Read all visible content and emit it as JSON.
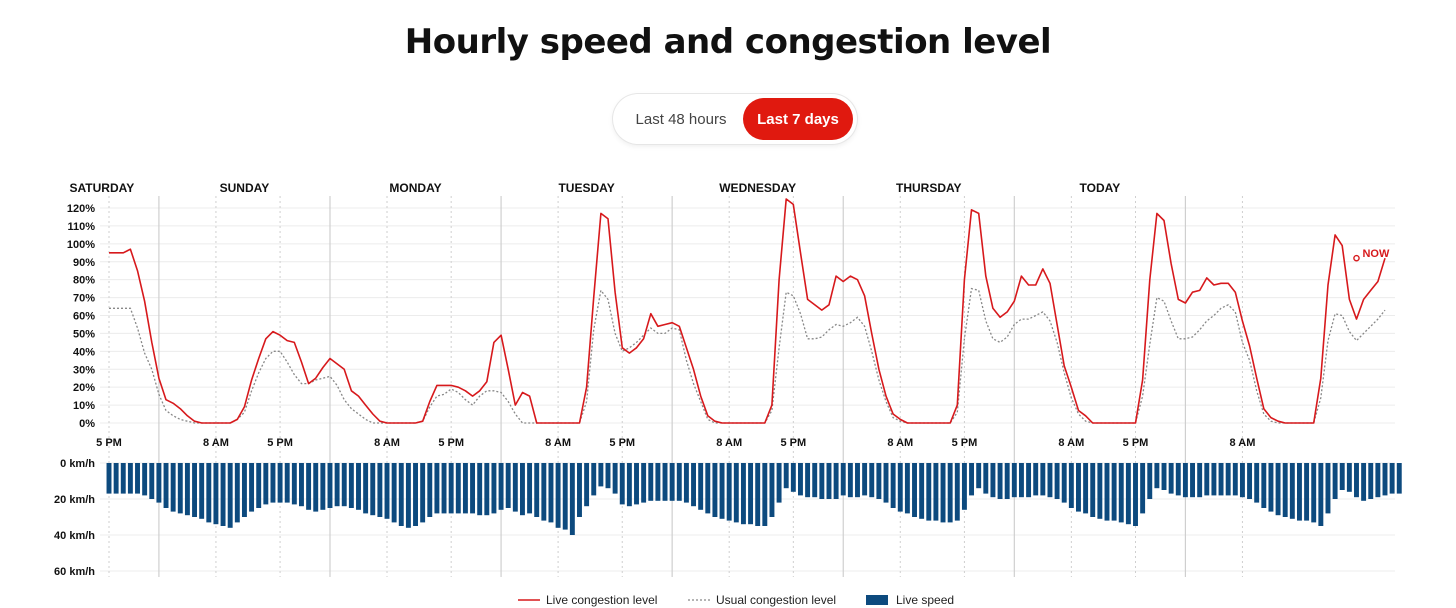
{
  "page": {
    "title": "Hourly speed and congestion level",
    "toggle": {
      "option_48h": "Last 48 hours",
      "option_7d": "Last 7 days",
      "active": "Last 7 days"
    }
  },
  "colors": {
    "live": "#d7191c",
    "usual": "#888888",
    "speed": "#0d4a7e",
    "active_button": "#e0190f",
    "now": "#d7191c"
  },
  "chart_data": [
    {
      "type": "line",
      "title": "",
      "x_unit": "hour",
      "x_start_label": "Saturday 5 PM",
      "days": [
        "SATURDAY",
        "SUNDAY",
        "MONDAY",
        "TUESDAY",
        "WEDNESDAY",
        "THURSDAY",
        "TODAY"
      ],
      "day_boundaries": [
        7,
        31,
        55,
        79,
        103,
        127,
        151
      ],
      "time_ticks": [
        {
          "x": 0,
          "label": "5 PM"
        },
        {
          "x": 15,
          "label": "8 AM"
        },
        {
          "x": 24,
          "label": "5 PM"
        },
        {
          "x": 39,
          "label": "8 AM"
        },
        {
          "x": 48,
          "label": "5 PM"
        },
        {
          "x": 63,
          "label": "8 AM"
        },
        {
          "x": 72,
          "label": "5 PM"
        },
        {
          "x": 87,
          "label": "8 AM"
        },
        {
          "x": 96,
          "label": "5 PM"
        },
        {
          "x": 111,
          "label": "8 AM"
        },
        {
          "x": 120,
          "label": "5 PM"
        },
        {
          "x": 135,
          "label": "8 AM"
        },
        {
          "x": 144,
          "label": "5 PM"
        },
        {
          "x": 159,
          "label": "8 AM"
        }
      ],
      "y_ticks": [
        "0%",
        "10%",
        "20%",
        "30%",
        "40%",
        "50%",
        "60%",
        "70%",
        "80%",
        "90%",
        "100%",
        "110%",
        "120%"
      ],
      "ylim": [
        0,
        120
      ],
      "series": [
        {
          "name": "Live congestion level",
          "values": [
            95,
            95,
            95,
            97,
            85,
            68,
            45,
            25,
            13,
            11,
            8,
            4,
            1,
            0,
            0,
            0,
            0,
            0,
            2,
            9,
            24,
            36,
            47,
            51,
            49,
            46,
            45,
            34,
            22,
            25,
            31,
            36,
            33,
            30,
            18,
            15,
            10,
            5,
            1,
            0,
            0,
            0,
            0,
            0,
            1,
            12,
            21,
            21,
            21,
            20,
            18,
            15,
            18,
            23,
            45,
            49,
            30,
            10,
            17,
            15,
            0,
            0,
            0,
            0,
            0,
            0,
            0,
            20,
            70,
            117,
            114,
            73,
            42,
            39,
            42,
            47,
            61,
            54,
            55,
            56,
            54,
            42,
            30,
            15,
            4,
            1,
            0,
            0,
            0,
            0,
            0,
            0,
            0,
            10,
            80,
            125,
            122,
            95,
            69,
            66,
            63,
            66,
            82,
            79,
            82,
            80,
            71,
            50,
            30,
            15,
            5,
            2,
            0,
            0,
            0,
            0,
            0,
            0,
            0,
            10,
            80,
            119,
            117,
            82,
            64,
            59,
            62,
            68,
            82,
            77,
            77,
            86,
            78,
            55,
            32,
            20,
            7,
            4,
            0,
            0,
            0,
            0,
            0,
            0,
            0,
            24,
            80,
            117,
            113,
            89,
            69,
            67,
            73,
            74,
            81,
            77,
            78,
            78,
            73,
            57,
            43,
            25,
            8,
            3,
            1,
            0,
            0,
            0,
            0,
            0,
            25,
            77,
            105,
            99,
            69,
            58,
            69,
            74,
            79,
            92
          ]
        },
        {
          "name": "Usual congestion level",
          "values": [
            64,
            64,
            64,
            64,
            53,
            39,
            30,
            16,
            7,
            4,
            2,
            1,
            0,
            0,
            0,
            0,
            0,
            0,
            2,
            6,
            18,
            28,
            36,
            40,
            40,
            34,
            27,
            22,
            22,
            24,
            25,
            26,
            21,
            13,
            8,
            5,
            2,
            0,
            0,
            0,
            0,
            0,
            0,
            0,
            1,
            9,
            15,
            16,
            19,
            17,
            13,
            10,
            15,
            18,
            18,
            17,
            12,
            5,
            0,
            0,
            0,
            0,
            0,
            0,
            0,
            0,
            0,
            12,
            52,
            74,
            69,
            50,
            40,
            42,
            45,
            49,
            53,
            50,
            50,
            53,
            52,
            35,
            22,
            12,
            2,
            0,
            0,
            0,
            0,
            0,
            0,
            0,
            0,
            7,
            42,
            73,
            71,
            61,
            47,
            47,
            48,
            52,
            55,
            54,
            56,
            59,
            54,
            40,
            24,
            12,
            3,
            1,
            0,
            0,
            0,
            0,
            0,
            0,
            0,
            6,
            47,
            75,
            74,
            57,
            47,
            45,
            48,
            55,
            58,
            58,
            60,
            62,
            57,
            45,
            28,
            14,
            5,
            1,
            0,
            0,
            0,
            0,
            0,
            0,
            0,
            15,
            44,
            70,
            68,
            57,
            47,
            47,
            48,
            52,
            57,
            60,
            64,
            66,
            62,
            45,
            35,
            18,
            5,
            1,
            0,
            0,
            0,
            0,
            0,
            0,
            14,
            46,
            61,
            60,
            51,
            46,
            50,
            54,
            58,
            63
          ]
        }
      ],
      "annotations": [
        {
          "label": "NOW",
          "x": 175,
          "y": 92
        }
      ]
    },
    {
      "type": "bar",
      "title": "",
      "x_unit": "hour",
      "y_ticks": [
        "0 km/h",
        "20 km/h",
        "40 km/h",
        "60 km/h"
      ],
      "ylim": [
        0,
        60
      ],
      "inverted": true,
      "series": [
        {
          "name": "Live speed",
          "values": [
            17,
            17,
            17,
            17,
            17,
            18,
            20,
            22,
            25,
            27,
            28,
            29,
            30,
            31,
            33,
            34,
            35,
            36,
            33,
            30,
            27,
            25,
            23,
            22,
            22,
            22,
            23,
            24,
            26,
            27,
            26,
            25,
            24,
            24,
            25,
            26,
            28,
            29,
            30,
            31,
            33,
            35,
            36,
            35,
            33,
            30,
            28,
            28,
            28,
            28,
            28,
            28,
            29,
            29,
            28,
            26,
            25,
            27,
            29,
            28,
            30,
            32,
            33,
            36,
            37,
            40,
            30,
            24,
            18,
            13,
            14,
            17,
            23,
            24,
            23,
            22,
            21,
            21,
            21,
            21,
            21,
            22,
            24,
            26,
            28,
            30,
            31,
            32,
            33,
            34,
            34,
            35,
            35,
            30,
            22,
            14,
            16,
            18,
            19,
            19,
            20,
            20,
            20,
            18,
            19,
            19,
            18,
            19,
            20,
            22,
            25,
            27,
            28,
            30,
            31,
            32,
            32,
            33,
            33,
            32,
            26,
            18,
            14,
            17,
            19,
            20,
            20,
            19,
            19,
            19,
            18,
            18,
            19,
            20,
            22,
            25,
            27,
            28,
            30,
            31,
            32,
            32,
            33,
            34,
            35,
            28,
            20,
            14,
            15,
            17,
            18,
            19,
            19,
            19,
            18,
            18,
            18,
            18,
            18,
            19,
            20,
            22,
            25,
            27,
            29,
            30,
            31,
            32,
            32,
            33,
            35,
            28,
            20,
            15,
            16,
            19,
            21,
            20,
            19,
            18,
            17,
            17
          ]
        }
      ],
      "x_ticks_from_previous": true
    }
  ],
  "legend": {
    "live": "Live congestion level",
    "usual": "Usual congestion level",
    "speed": "Live speed"
  }
}
